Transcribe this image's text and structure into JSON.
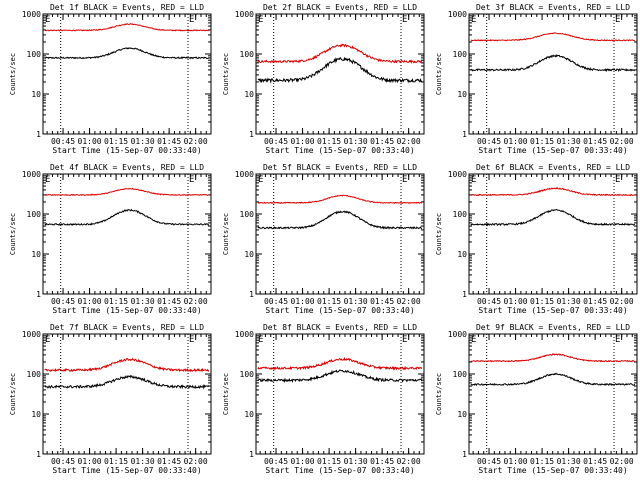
{
  "figure": {
    "background": "#ffffff",
    "axis_color": "#000000",
    "events_color": "#000000",
    "lld_color": "#dd0000",
    "shared": {
      "xlabel": "Start Time (15-Sep-07 00:33:40)",
      "ylabel": "Counts/sec",
      "x_tick_labels": [
        "00:45",
        "01:00",
        "01:15",
        "01:30",
        "01:45",
        "02:00"
      ],
      "y_tick_labels": [
        "1",
        "10",
        "100",
        "1000"
      ],
      "corner_markers": [
        "E",
        "E"
      ]
    }
  },
  "chart_data": [
    {
      "type": "line",
      "title": "Det 1f BLACK = Events, RED = LLD",
      "xlabel": "Start Time (15-Sep-07 00:33:40)",
      "ylabel": "Counts/sec",
      "x_range_min": [
        0,
        95
      ],
      "ylim": [
        1,
        1000
      ],
      "y_scale": "log",
      "x_ticks_min": [
        11.33,
        26.33,
        41.33,
        56.33,
        71.33,
        86.33
      ],
      "x_tick_labels": [
        "00:45",
        "01:00",
        "01:15",
        "01:30",
        "01:45",
        "02:00"
      ],
      "vlines_min": [
        10,
        82
      ],
      "series": [
        {
          "name": "BLACK = Events",
          "color": "#000000",
          "base": 80,
          "peak": 140,
          "peak_at": 49,
          "width": 11,
          "noise": 0.04
        },
        {
          "name": "RED = LLD",
          "color": "#dd0000",
          "base": 390,
          "peak": 560,
          "peak_at": 49,
          "width": 11,
          "noise": 0.025
        }
      ]
    },
    {
      "type": "line",
      "title": "Det 2f BLACK = Events, RED = LLD",
      "xlabel": "Start Time (15-Sep-07 00:33:40)",
      "ylabel": "Counts/sec",
      "x_range_min": [
        0,
        95
      ],
      "ylim": [
        1,
        1000
      ],
      "y_scale": "log",
      "x_ticks_min": [
        11.33,
        26.33,
        41.33,
        56.33,
        71.33,
        86.33
      ],
      "x_tick_labels": [
        "00:45",
        "01:00",
        "01:15",
        "01:30",
        "01:45",
        "02:00"
      ],
      "vlines_min": [
        10,
        82
      ],
      "series": [
        {
          "name": "BLACK = Events",
          "color": "#000000",
          "base": 22,
          "peak": 75,
          "peak_at": 49,
          "width": 12,
          "noise": 0.09
        },
        {
          "name": "RED = LLD",
          "color": "#dd0000",
          "base": 65,
          "peak": 165,
          "peak_at": 49,
          "width": 12,
          "noise": 0.06
        }
      ]
    },
    {
      "type": "line",
      "title": "Det 3f BLACK = Events, RED = LLD",
      "xlabel": "Start Time (15-Sep-07 00:33:40)",
      "ylabel": "Counts/sec",
      "x_range_min": [
        0,
        95
      ],
      "ylim": [
        1,
        1000
      ],
      "y_scale": "log",
      "x_ticks_min": [
        11.33,
        26.33,
        41.33,
        56.33,
        71.33,
        86.33
      ],
      "x_tick_labels": [
        "00:45",
        "01:00",
        "01:15",
        "01:30",
        "01:45",
        "02:00"
      ],
      "vlines_min": [
        10,
        82
      ],
      "series": [
        {
          "name": "BLACK = Events",
          "color": "#000000",
          "base": 40,
          "peak": 90,
          "peak_at": 49,
          "width": 11,
          "noise": 0.05
        },
        {
          "name": "RED = LLD",
          "color": "#dd0000",
          "base": 220,
          "peak": 330,
          "peak_at": 49,
          "width": 12,
          "noise": 0.025
        }
      ]
    },
    {
      "type": "line",
      "title": "Det 4f BLACK = Events, RED = LLD",
      "xlabel": "Start Time (15-Sep-07 00:33:40)",
      "ylabel": "Counts/sec",
      "x_range_min": [
        0,
        95
      ],
      "ylim": [
        1,
        1000
      ],
      "y_scale": "log",
      "x_ticks_min": [
        11.33,
        26.33,
        41.33,
        56.33,
        71.33,
        86.33
      ],
      "x_tick_labels": [
        "00:45",
        "01:00",
        "01:15",
        "01:30",
        "01:45",
        "02:00"
      ],
      "vlines_min": [
        10,
        82
      ],
      "series": [
        {
          "name": "BLACK = Events",
          "color": "#000000",
          "base": 55,
          "peak": 125,
          "peak_at": 49,
          "width": 11,
          "noise": 0.04
        },
        {
          "name": "RED = LLD",
          "color": "#dd0000",
          "base": 300,
          "peak": 430,
          "peak_at": 49,
          "width": 11,
          "noise": 0.025
        }
      ]
    },
    {
      "type": "line",
      "title": "Det 5f BLACK = Events, RED = LLD",
      "xlabel": "Start Time (15-Sep-07 00:33:40)",
      "ylabel": "Counts/sec",
      "x_range_min": [
        0,
        95
      ],
      "ylim": [
        1,
        1000
      ],
      "y_scale": "log",
      "x_ticks_min": [
        11.33,
        26.33,
        41.33,
        56.33,
        71.33,
        86.33
      ],
      "x_tick_labels": [
        "00:45",
        "01:00",
        "01:15",
        "01:30",
        "01:45",
        "02:00"
      ],
      "vlines_min": [
        10,
        82
      ],
      "series": [
        {
          "name": "BLACK = Events",
          "color": "#000000",
          "base": 45,
          "peak": 115,
          "peak_at": 49,
          "width": 11,
          "noise": 0.045
        },
        {
          "name": "RED = LLD",
          "color": "#dd0000",
          "base": 190,
          "peak": 290,
          "peak_at": 49,
          "width": 11,
          "noise": 0.025
        }
      ]
    },
    {
      "type": "line",
      "title": "Det 6f BLACK = Events, RED = LLD",
      "xlabel": "Start Time (15-Sep-07 00:33:40)",
      "ylabel": "Counts/sec",
      "x_range_min": [
        0,
        95
      ],
      "ylim": [
        1,
        1000
      ],
      "y_scale": "log",
      "x_ticks_min": [
        11.33,
        26.33,
        41.33,
        56.33,
        71.33,
        86.33
      ],
      "x_tick_labels": [
        "00:45",
        "01:00",
        "01:15",
        "01:30",
        "01:45",
        "02:00"
      ],
      "vlines_min": [
        10,
        82
      ],
      "series": [
        {
          "name": "BLACK = Events",
          "color": "#000000",
          "base": 55,
          "peak": 125,
          "peak_at": 49,
          "width": 11,
          "noise": 0.045
        },
        {
          "name": "RED = LLD",
          "color": "#dd0000",
          "base": 300,
          "peak": 440,
          "peak_at": 49,
          "width": 11,
          "noise": 0.03
        }
      ]
    },
    {
      "type": "line",
      "title": "Det 7f BLACK = Events, RED = LLD",
      "xlabel": "Start Time (15-Sep-07 00:33:40)",
      "ylabel": "Counts/sec",
      "x_range_min": [
        0,
        95
      ],
      "ylim": [
        1,
        1000
      ],
      "y_scale": "log",
      "x_ticks_min": [
        11.33,
        26.33,
        41.33,
        56.33,
        71.33,
        86.33
      ],
      "x_tick_labels": [
        "00:45",
        "01:00",
        "01:15",
        "01:30",
        "01:45",
        "02:00"
      ],
      "vlines_min": [
        10,
        82
      ],
      "series": [
        {
          "name": "BLACK = Events",
          "color": "#000000",
          "base": 48,
          "peak": 85,
          "peak_at": 49,
          "width": 12,
          "noise": 0.07
        },
        {
          "name": "RED = LLD",
          "color": "#dd0000",
          "base": 125,
          "peak": 230,
          "peak_at": 49,
          "width": 12,
          "noise": 0.06
        }
      ]
    },
    {
      "type": "line",
      "title": "Det 8f BLACK = Events, RED = LLD",
      "xlabel": "Start Time (15-Sep-07 00:33:40)",
      "ylabel": "Counts/sec",
      "x_range_min": [
        0,
        95
      ],
      "ylim": [
        1,
        1000
      ],
      "y_scale": "log",
      "x_ticks_min": [
        11.33,
        26.33,
        41.33,
        56.33,
        71.33,
        86.33
      ],
      "x_tick_labels": [
        "00:45",
        "01:00",
        "01:15",
        "01:30",
        "01:45",
        "02:00"
      ],
      "vlines_min": [
        10,
        82
      ],
      "series": [
        {
          "name": "BLACK = Events",
          "color": "#000000",
          "base": 70,
          "peak": 120,
          "peak_at": 49,
          "width": 12,
          "noise": 0.07
        },
        {
          "name": "RED = LLD",
          "color": "#dd0000",
          "base": 140,
          "peak": 235,
          "peak_at": 49,
          "width": 12,
          "noise": 0.06
        }
      ]
    },
    {
      "type": "line",
      "title": "Det 9f BLACK = Events, RED = LLD",
      "xlabel": "Start Time (15-Sep-07 00:33:40)",
      "ylabel": "Counts/sec",
      "x_range_min": [
        0,
        95
      ],
      "ylim": [
        1,
        1000
      ],
      "y_scale": "log",
      "x_ticks_min": [
        11.33,
        26.33,
        41.33,
        56.33,
        71.33,
        86.33
      ],
      "x_tick_labels": [
        "00:45",
        "01:00",
        "01:15",
        "01:30",
        "01:45",
        "02:00"
      ],
      "vlines_min": [
        10,
        82
      ],
      "series": [
        {
          "name": "BLACK = Events",
          "color": "#000000",
          "base": 55,
          "peak": 100,
          "peak_at": 49,
          "width": 11,
          "noise": 0.045
        },
        {
          "name": "RED = LLD",
          "color": "#dd0000",
          "base": 210,
          "peak": 310,
          "peak_at": 49,
          "width": 11,
          "noise": 0.03
        }
      ]
    }
  ]
}
